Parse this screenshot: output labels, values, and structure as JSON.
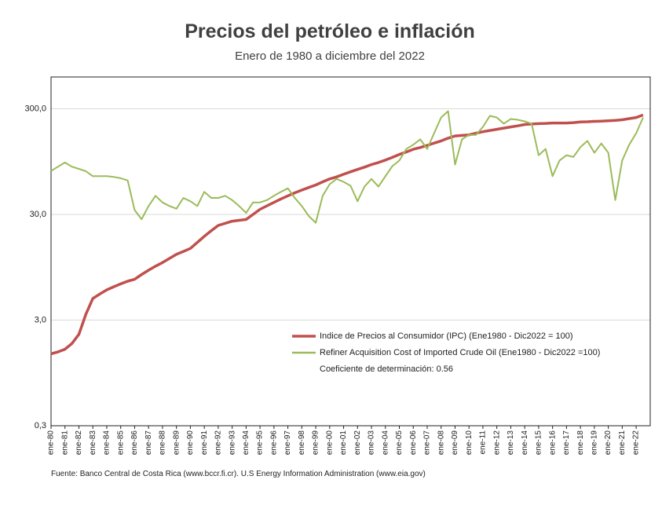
{
  "chart_data": {
    "type": "line",
    "title": "Precios del petróleo e inflación",
    "subtitle": "Enero de 1980 a diciembre del 2022",
    "source": "Fuente: Banco Central de Costa Rica (www.bccr.fi.cr).  U.S Energy Information Administration (www.eia.gov)",
    "annotation": "Coeficiente de determinación: 0.56",
    "log_scale": true,
    "grid": true,
    "ylim": [
      0.3,
      600
    ],
    "yticks": [
      {
        "value": 0.3,
        "label": "0,3"
      },
      {
        "value": 3,
        "label": "3,0"
      },
      {
        "value": 30,
        "label": "30,0"
      },
      {
        "value": 300,
        "label": "300,0"
      }
    ],
    "categories": [
      "ene-80",
      null,
      "ene-81",
      null,
      "ene-82",
      null,
      "ene-83",
      null,
      "ene-84",
      null,
      "ene-85",
      null,
      "ene-86",
      null,
      "ene-87",
      null,
      "ene-88",
      null,
      "ene-89",
      null,
      "ene-90",
      null,
      "ene-91",
      null,
      "ene-92",
      null,
      "ene-93",
      null,
      "ene-94",
      null,
      "ene-95",
      null,
      "ene-96",
      null,
      "ene-97",
      null,
      "ene-98",
      null,
      "ene-99",
      null,
      "ene-00",
      null,
      "ene-01",
      null,
      "ene-02",
      null,
      "ene-03",
      null,
      "ene-04",
      null,
      "ene-05",
      null,
      "ene-06",
      null,
      "ene-07",
      null,
      "ene-08",
      null,
      "ene-09",
      null,
      "ene-10",
      null,
      "ene-11",
      null,
      "ene-12",
      null,
      "ene-13",
      null,
      "ene-14",
      null,
      "ene-15",
      null,
      "ene-16",
      null,
      "ene-17",
      null,
      "ene-18",
      null,
      "ene-19",
      null,
      "ene-20",
      null,
      "ene-21",
      null,
      "ene-22",
      null
    ],
    "series": [
      {
        "name": "Indice de Precios al Consumidor (IPC) (Ene1980 - Dic2022 = 100)",
        "color": "#c0504d",
        "values": [
          1.44,
          1.5,
          1.59,
          1.8,
          2.2,
          3.4,
          4.8,
          5.3,
          5.8,
          6.2,
          6.6,
          7.0,
          7.3,
          8.1,
          8.9,
          9.7,
          10.5,
          11.5,
          12.6,
          13.4,
          14.3,
          16.3,
          18.6,
          21.0,
          23.6,
          24.7,
          25.9,
          26.4,
          26.9,
          30.0,
          33.5,
          36.2,
          39,
          42,
          45,
          48,
          51,
          54,
          57,
          61,
          65,
          68,
          72,
          76,
          80,
          84,
          89,
          93,
          98,
          104,
          111,
          117,
          124,
          129,
          135,
          142,
          149,
          158,
          166,
          168,
          170,
          176,
          182,
          187,
          192,
          197,
          202,
          207,
          213,
          215,
          217,
          218,
          220,
          220,
          220,
          222,
          225,
          226,
          228,
          229,
          231,
          233,
          236,
          242,
          248,
          262
        ]
      },
      {
        "name": "Refiner Acquisition Cost of Imported Crude Oil (Ene1980 - Dic2022 =100)",
        "color": "#9bbb59",
        "values": [
          77.5,
          85,
          93,
          85,
          81,
          77,
          69,
          69,
          69,
          68,
          66,
          63,
          33,
          27,
          36,
          45,
          39,
          36,
          34,
          43,
          40,
          36,
          49,
          43,
          43,
          45,
          41,
          36,
          31,
          39,
          39,
          41,
          45,
          49,
          53,
          43,
          36,
          29,
          25,
          45,
          58,
          65,
          61,
          56,
          40,
          55,
          65,
          55,
          69,
          86,
          97,
          125,
          137,
          154,
          125,
          176,
          248,
          285,
          89,
          154,
          170,
          170,
          202,
          257,
          248,
          217,
          240,
          236,
          228,
          217,
          109,
          125,
          69,
          97,
          109,
          105,
          130,
          149,
          115,
          141,
          115,
          41,
          97,
          137,
          176,
          248
        ]
      }
    ]
  }
}
